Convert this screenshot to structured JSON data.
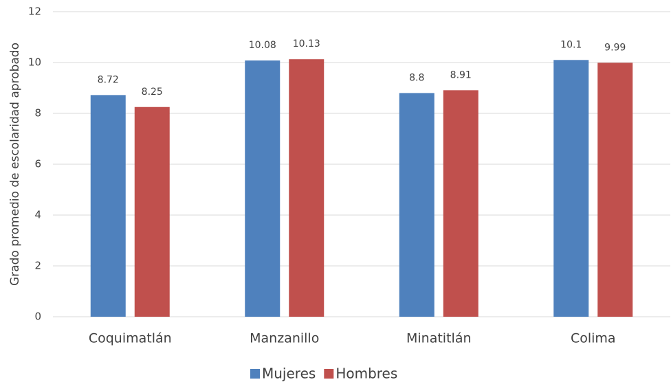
{
  "chart_data": {
    "type": "bar",
    "y_axis_label": "Grado promedio de escolaridad aprobado",
    "categories": [
      "Coquimatlán",
      "Manzanillo",
      "Minatitlán",
      "Colima"
    ],
    "series": [
      {
        "name": "Mujeres",
        "color": "#4f81bd",
        "values": [
          8.72,
          10.08,
          8.8,
          10.1
        ]
      },
      {
        "name": "Hombres",
        "color": "#c0504d",
        "values": [
          8.25,
          10.13,
          8.91,
          9.99
        ]
      }
    ],
    "ylim": [
      0,
      12
    ],
    "yticks": [
      0,
      2,
      4,
      6,
      8,
      10,
      12
    ],
    "grid": true,
    "legend": "bottom"
  }
}
